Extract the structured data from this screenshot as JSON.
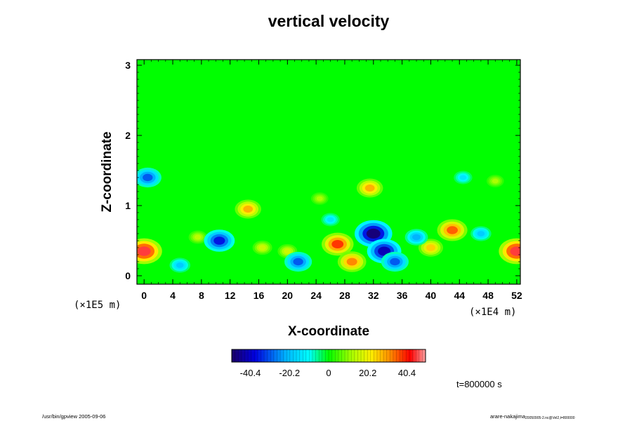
{
  "chart_data": {
    "type": "heatmap",
    "title": "vertical velocity",
    "xlabel": "X-coordinate",
    "ylabel": "Z-coordinate",
    "x_unit": "(×1E4 m)",
    "y_unit": "(×1E5 m)",
    "x_ticks": [
      "0",
      "4",
      "8",
      "12",
      "16",
      "20",
      "24",
      "28",
      "32",
      "36",
      "40",
      "44",
      "48",
      "52"
    ],
    "y_ticks": [
      "0",
      "1",
      "2",
      "3"
    ],
    "xlim": [
      -1,
      52.5
    ],
    "ylim": [
      -0.12,
      3.08
    ],
    "colorbar": {
      "ticks": [
        "-40.4",
        "-20.2",
        "0",
        "20.2",
        "40.4"
      ],
      "range": [
        -50,
        50
      ]
    },
    "features": [
      {
        "x": 0,
        "z": 0.35,
        "value": 45
      },
      {
        "x": 52,
        "z": 0.35,
        "value": 45
      },
      {
        "x": 27,
        "z": 0.45,
        "value": 38
      },
      {
        "x": 29,
        "z": 0.2,
        "value": 32
      },
      {
        "x": 43,
        "z": 0.65,
        "value": 35
      },
      {
        "x": 40,
        "z": 0.4,
        "value": 25
      },
      {
        "x": 14.5,
        "z": 0.95,
        "value": 28
      },
      {
        "x": 31.5,
        "z": 1.25,
        "value": 28
      },
      {
        "x": 20,
        "z": 0.35,
        "value": 16
      },
      {
        "x": 16.5,
        "z": 0.4,
        "value": 16
      },
      {
        "x": 7.5,
        "z": 0.55,
        "value": 14
      },
      {
        "x": 49,
        "z": 1.35,
        "value": 12
      },
      {
        "x": 24.5,
        "z": 1.1,
        "value": 12
      },
      {
        "x": 32,
        "z": 0.6,
        "value": -48
      },
      {
        "x": 33.5,
        "z": 0.35,
        "value": -42
      },
      {
        "x": 35,
        "z": 0.2,
        "value": -30
      },
      {
        "x": 10.5,
        "z": 0.5,
        "value": -36
      },
      {
        "x": 21.5,
        "z": 0.2,
        "value": -30
      },
      {
        "x": 0.5,
        "z": 1.4,
        "value": -30
      },
      {
        "x": 5,
        "z": 0.15,
        "value": -18
      },
      {
        "x": 38,
        "z": 0.55,
        "value": -22
      },
      {
        "x": 47,
        "z": 0.6,
        "value": -18
      },
      {
        "x": 44.5,
        "z": 1.4,
        "value": -14
      },
      {
        "x": 26,
        "z": 0.8,
        "value": -14
      }
    ]
  },
  "time_label": "t=800000 s",
  "footer_left": "/usr/bin/gpview 2005-09-06",
  "footer_right_main": "arare-nakajima",
  "footer_right_sub": "20050905-2.nc@Vel2,t=800000"
}
